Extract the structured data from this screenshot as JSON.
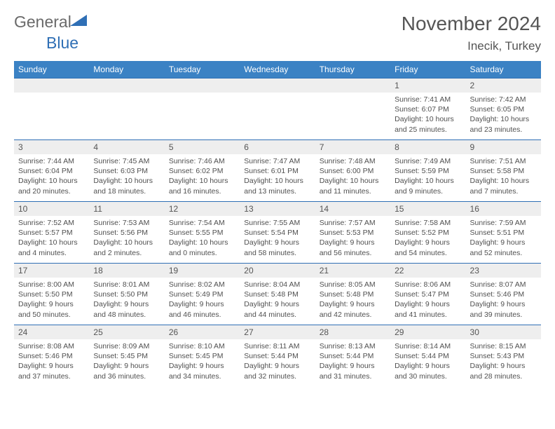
{
  "logo": {
    "word1": "General",
    "word2": "Blue"
  },
  "title": "November 2024",
  "location": "Inecik, Turkey",
  "colors": {
    "header_bg": "#3b82c4",
    "header_text": "#ffffff",
    "border": "#2f6fb5",
    "daynum_bg": "#eeeeee",
    "text": "#505050",
    "logo_gray": "#6a6a6a",
    "logo_blue": "#2f6fb5"
  },
  "weekdays": [
    "Sunday",
    "Monday",
    "Tuesday",
    "Wednesday",
    "Thursday",
    "Friday",
    "Saturday"
  ],
  "weeks": [
    [
      null,
      null,
      null,
      null,
      null,
      {
        "n": "1",
        "sr": "7:41 AM",
        "ss": "6:07 PM",
        "dl": "10 hours and 25 minutes."
      },
      {
        "n": "2",
        "sr": "7:42 AM",
        "ss": "6:05 PM",
        "dl": "10 hours and 23 minutes."
      }
    ],
    [
      {
        "n": "3",
        "sr": "7:44 AM",
        "ss": "6:04 PM",
        "dl": "10 hours and 20 minutes."
      },
      {
        "n": "4",
        "sr": "7:45 AM",
        "ss": "6:03 PM",
        "dl": "10 hours and 18 minutes."
      },
      {
        "n": "5",
        "sr": "7:46 AM",
        "ss": "6:02 PM",
        "dl": "10 hours and 16 minutes."
      },
      {
        "n": "6",
        "sr": "7:47 AM",
        "ss": "6:01 PM",
        "dl": "10 hours and 13 minutes."
      },
      {
        "n": "7",
        "sr": "7:48 AM",
        "ss": "6:00 PM",
        "dl": "10 hours and 11 minutes."
      },
      {
        "n": "8",
        "sr": "7:49 AM",
        "ss": "5:59 PM",
        "dl": "10 hours and 9 minutes."
      },
      {
        "n": "9",
        "sr": "7:51 AM",
        "ss": "5:58 PM",
        "dl": "10 hours and 7 minutes."
      }
    ],
    [
      {
        "n": "10",
        "sr": "7:52 AM",
        "ss": "5:57 PM",
        "dl": "10 hours and 4 minutes."
      },
      {
        "n": "11",
        "sr": "7:53 AM",
        "ss": "5:56 PM",
        "dl": "10 hours and 2 minutes."
      },
      {
        "n": "12",
        "sr": "7:54 AM",
        "ss": "5:55 PM",
        "dl": "10 hours and 0 minutes."
      },
      {
        "n": "13",
        "sr": "7:55 AM",
        "ss": "5:54 PM",
        "dl": "9 hours and 58 minutes."
      },
      {
        "n": "14",
        "sr": "7:57 AM",
        "ss": "5:53 PM",
        "dl": "9 hours and 56 minutes."
      },
      {
        "n": "15",
        "sr": "7:58 AM",
        "ss": "5:52 PM",
        "dl": "9 hours and 54 minutes."
      },
      {
        "n": "16",
        "sr": "7:59 AM",
        "ss": "5:51 PM",
        "dl": "9 hours and 52 minutes."
      }
    ],
    [
      {
        "n": "17",
        "sr": "8:00 AM",
        "ss": "5:50 PM",
        "dl": "9 hours and 50 minutes."
      },
      {
        "n": "18",
        "sr": "8:01 AM",
        "ss": "5:50 PM",
        "dl": "9 hours and 48 minutes."
      },
      {
        "n": "19",
        "sr": "8:02 AM",
        "ss": "5:49 PM",
        "dl": "9 hours and 46 minutes."
      },
      {
        "n": "20",
        "sr": "8:04 AM",
        "ss": "5:48 PM",
        "dl": "9 hours and 44 minutes."
      },
      {
        "n": "21",
        "sr": "8:05 AM",
        "ss": "5:48 PM",
        "dl": "9 hours and 42 minutes."
      },
      {
        "n": "22",
        "sr": "8:06 AM",
        "ss": "5:47 PM",
        "dl": "9 hours and 41 minutes."
      },
      {
        "n": "23",
        "sr": "8:07 AM",
        "ss": "5:46 PM",
        "dl": "9 hours and 39 minutes."
      }
    ],
    [
      {
        "n": "24",
        "sr": "8:08 AM",
        "ss": "5:46 PM",
        "dl": "9 hours and 37 minutes."
      },
      {
        "n": "25",
        "sr": "8:09 AM",
        "ss": "5:45 PM",
        "dl": "9 hours and 36 minutes."
      },
      {
        "n": "26",
        "sr": "8:10 AM",
        "ss": "5:45 PM",
        "dl": "9 hours and 34 minutes."
      },
      {
        "n": "27",
        "sr": "8:11 AM",
        "ss": "5:44 PM",
        "dl": "9 hours and 32 minutes."
      },
      {
        "n": "28",
        "sr": "8:13 AM",
        "ss": "5:44 PM",
        "dl": "9 hours and 31 minutes."
      },
      {
        "n": "29",
        "sr": "8:14 AM",
        "ss": "5:44 PM",
        "dl": "9 hours and 30 minutes."
      },
      {
        "n": "30",
        "sr": "8:15 AM",
        "ss": "5:43 PM",
        "dl": "9 hours and 28 minutes."
      }
    ]
  ],
  "labels": {
    "sunrise": "Sunrise:",
    "sunset": "Sunset:",
    "daylight": "Daylight:"
  }
}
